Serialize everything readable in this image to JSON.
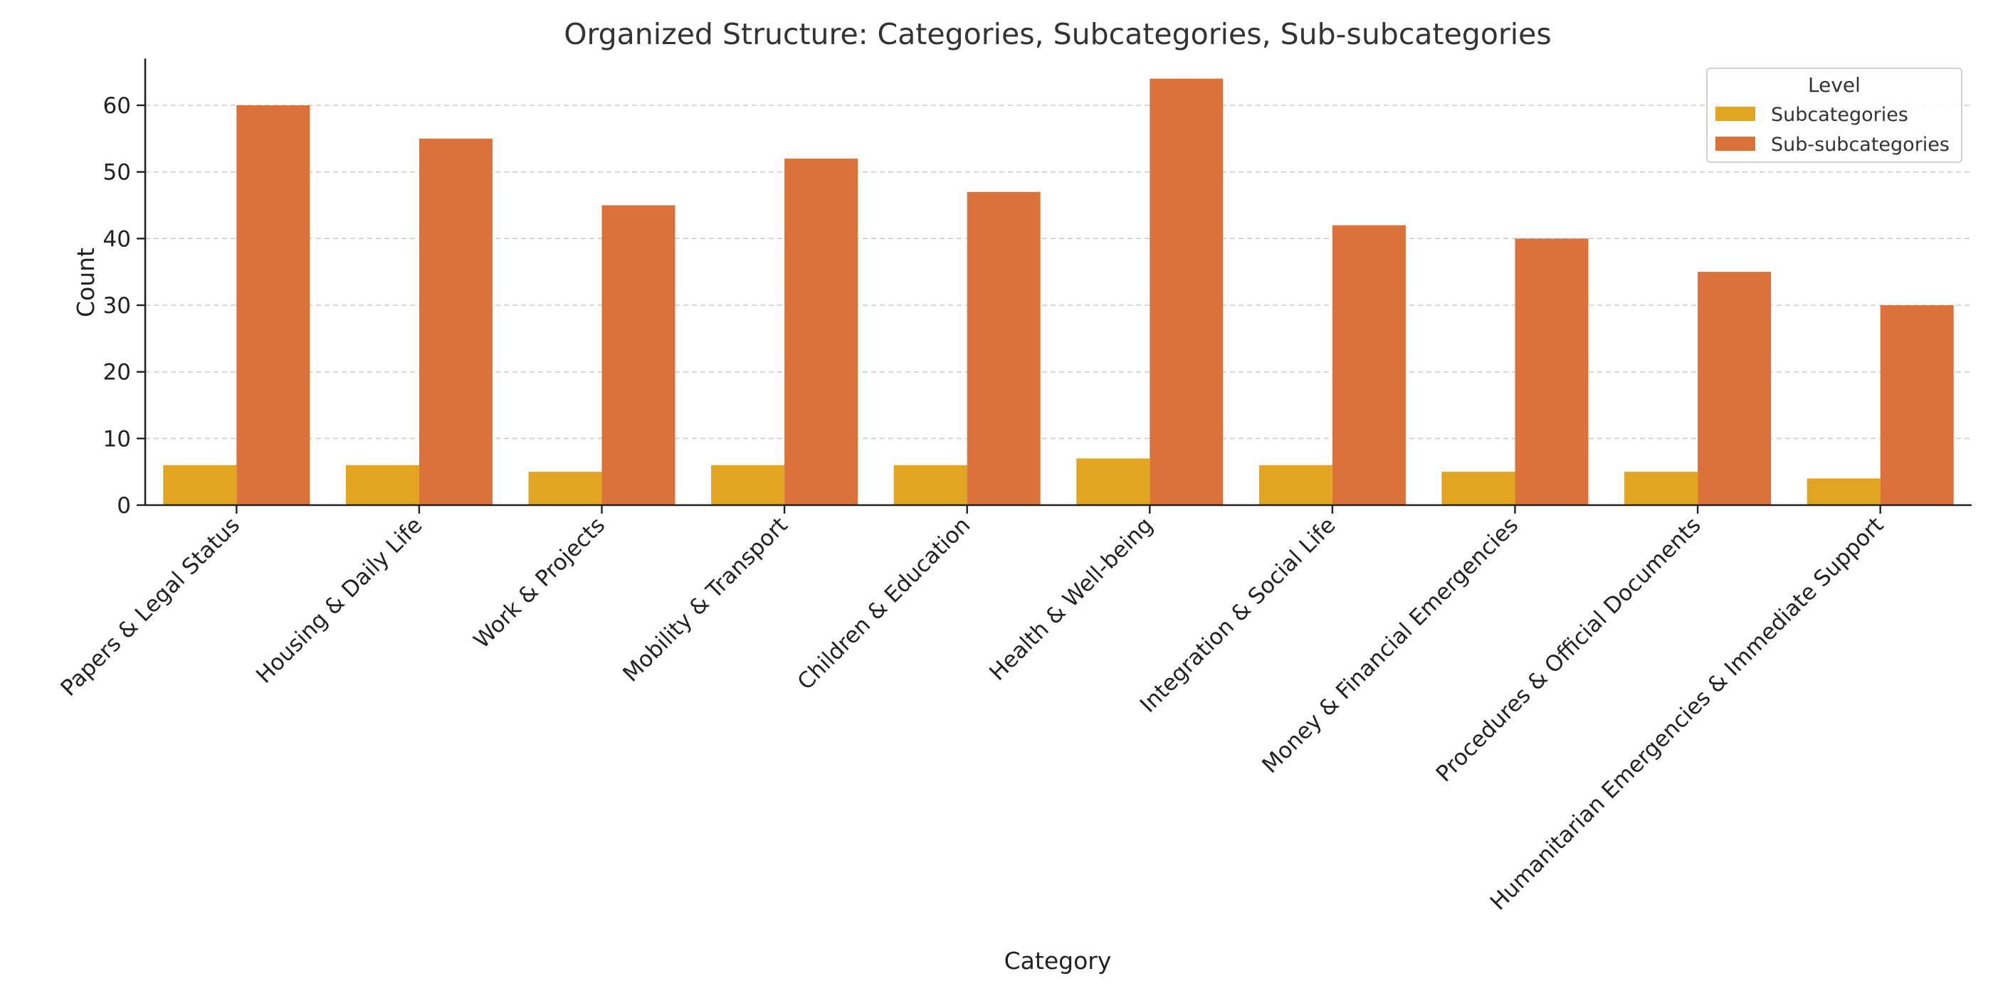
{
  "chart_data": {
    "type": "bar",
    "title": "Organized Structure: Categories, Subcategories, Sub-subcategories",
    "xlabel": "Category",
    "ylabel": "Count",
    "ylim": [
      0,
      67
    ],
    "yticks": [
      0,
      10,
      20,
      30,
      40,
      50,
      60
    ],
    "grid": true,
    "legend_title": "Level",
    "legend_position": "top-right",
    "categories": [
      "Papers & Legal Status",
      "Housing & Daily Life",
      "Work & Projects",
      "Mobility & Transport",
      "Children & Education",
      "Health & Well-being",
      "Integration & Social Life",
      "Money & Financial Emergencies",
      "Procedures & Official Documents",
      "Humanitarian Emergencies & Immediate Support"
    ],
    "series": [
      {
        "name": "Subcategories",
        "color": "#e2a521",
        "values": [
          6,
          6,
          5,
          6,
          6,
          7,
          6,
          5,
          5,
          4
        ]
      },
      {
        "name": "Sub-subcategories",
        "color": "#db723b",
        "values": [
          60,
          55,
          45,
          52,
          47,
          64,
          42,
          40,
          35,
          30
        ]
      }
    ]
  }
}
